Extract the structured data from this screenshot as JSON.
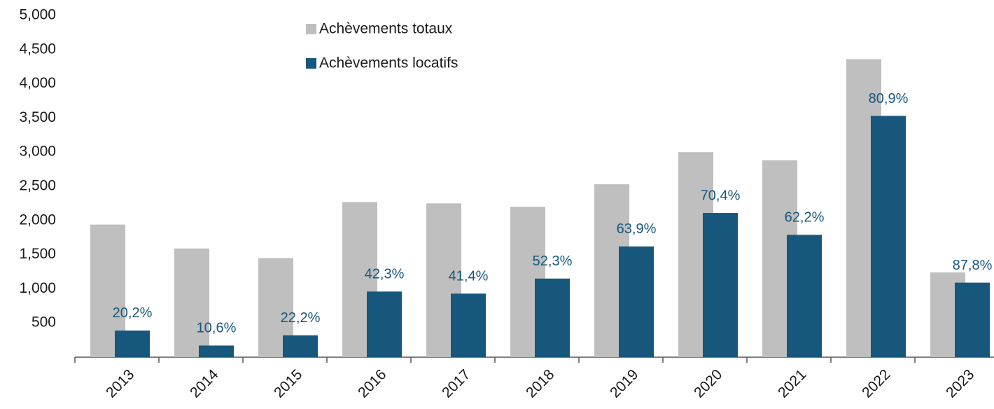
{
  "chart_data": {
    "type": "bar",
    "categories": [
      "2013",
      "2014",
      "2015",
      "2016",
      "2017",
      "2018",
      "2019",
      "2020",
      "2021",
      "2022",
      "2023"
    ],
    "series": [
      {
        "name": "Achèvements totaux",
        "color": "#bfbfbf",
        "values": [
          1940,
          1590,
          1450,
          2270,
          2250,
          2200,
          2530,
          3000,
          2880,
          4360,
          1240
        ]
      },
      {
        "name": "Achèvements locatifs",
        "color": "#17577c",
        "values": [
          390,
          170,
          320,
          960,
          930,
          1150,
          1620,
          2110,
          1790,
          3530,
          1090
        ],
        "percent_labels": [
          "20,2%",
          "10,6%",
          "22,2%",
          "42,3%",
          "41,4%",
          "52,3%",
          "63,9%",
          "70,4%",
          "62,2%",
          "80,9%",
          "87,8%"
        ]
      }
    ],
    "ylim": [
      0,
      5000
    ],
    "yticks": [
      500,
      {
        "value": 1000,
        "label": "1,000"
      },
      {
        "value": 1500,
        "label": "1,500"
      },
      {
        "value": 2000,
        "label": "2,000"
      },
      {
        "value": 2500,
        "label": "2,500"
      },
      {
        "value": 3000,
        "label": "3,000"
      },
      {
        "value": 3500,
        "label": "3,500"
      },
      {
        "value": 4000,
        "label": "4,000"
      },
      {
        "value": 4500,
        "label": "4,500"
      },
      {
        "value": 5000,
        "label": "5,000"
      }
    ],
    "grid": false,
    "legend": "top"
  }
}
